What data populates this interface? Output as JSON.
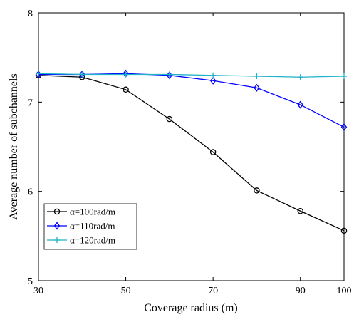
{
  "chart_data": {
    "type": "line",
    "title": "",
    "xlabel": "Coverage radius (m)",
    "ylabel": "Average number of subchannels",
    "xlim": [
      30,
      100
    ],
    "ylim": [
      5,
      8
    ],
    "xticks": [
      30,
      50,
      70,
      90,
      100
    ],
    "yticks": [
      5,
      6,
      7,
      8
    ],
    "grid": false,
    "legend_position": "bottom-left",
    "x": [
      30,
      40,
      50,
      60,
      70,
      80,
      90,
      100
    ],
    "series": [
      {
        "name": "α=100rad/m",
        "color": "#000000",
        "marker": "circle",
        "values": [
          7.3,
          7.28,
          7.14,
          6.81,
          6.44,
          6.01,
          5.78,
          5.56
        ]
      },
      {
        "name": "α=110rad/m",
        "color": "#0000ff",
        "marker": "diamond",
        "values": [
          7.31,
          7.31,
          7.32,
          7.3,
          7.24,
          7.16,
          6.97,
          6.72
        ]
      },
      {
        "name": "α=120rad/m",
        "color": "#20b2c8",
        "marker": "plus",
        "values": [
          7.32,
          7.31,
          7.31,
          7.31,
          7.3,
          7.29,
          7.28,
          7.29
        ]
      }
    ]
  }
}
